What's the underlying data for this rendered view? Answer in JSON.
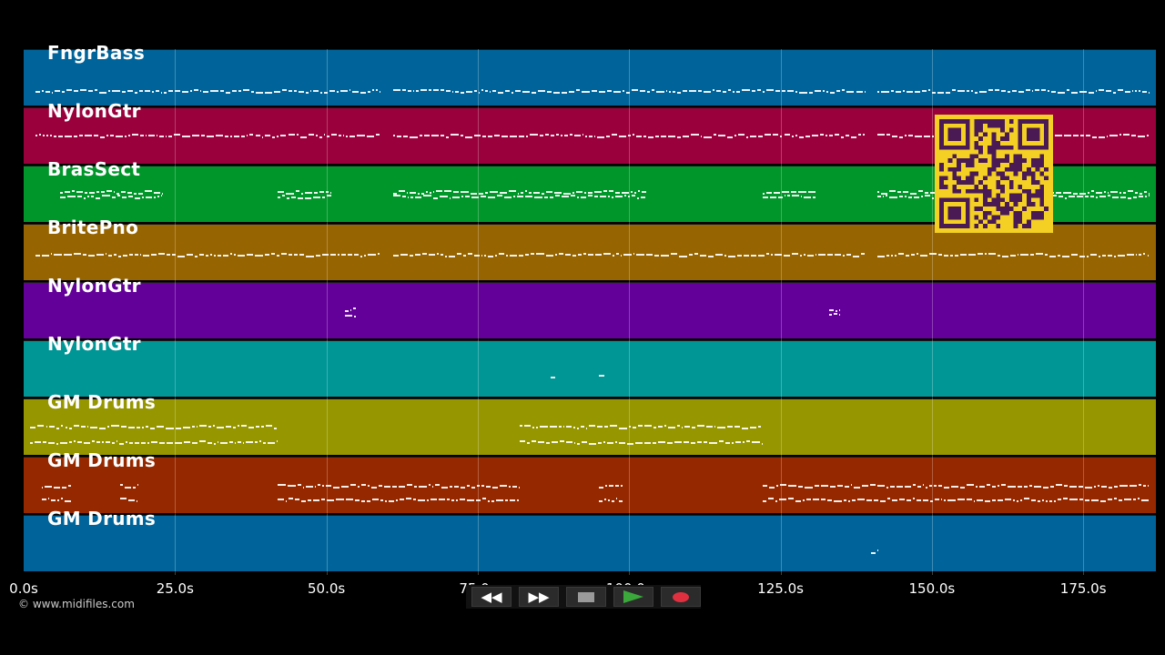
{
  "tracks": [
    {
      "name": "FngrBass",
      "color": "#00649a"
    },
    {
      "name": "NylonGtr",
      "color": "#9a003c"
    },
    {
      "name": "BrasSect",
      "color": "#00962a"
    },
    {
      "name": "BritePno",
      "color": "#966400"
    },
    {
      "name": "NylonGtr",
      "color": "#64009a"
    },
    {
      "name": "NylonGtr",
      "color": "#009696"
    },
    {
      "name": "GM Drums",
      "color": "#969600"
    },
    {
      "name": "GM Drums",
      "color": "#962800"
    },
    {
      "name": "GM Drums",
      "color": "#00649a"
    }
  ],
  "timeline": {
    "max_seconds": 187,
    "ticks": [
      "0.0s",
      "25.0s",
      "50.0s",
      "75.0s",
      "100.0s",
      "125.0s",
      "150.0s",
      "175.0s"
    ],
    "tick_values": [
      0,
      25,
      50,
      75,
      100,
      125,
      150,
      175
    ]
  },
  "copyright": "© www.midifiles.com",
  "controls": {
    "rewind_icon": "rewind-icon",
    "fast_forward_icon": "fast-forward-icon",
    "stop_icon": "stop-icon",
    "play_icon": "play-icon",
    "record_icon": "record-icon",
    "play_color": "#3aa83a",
    "record_color": "#e03040"
  },
  "qr_icon": "qr-code-icon"
}
